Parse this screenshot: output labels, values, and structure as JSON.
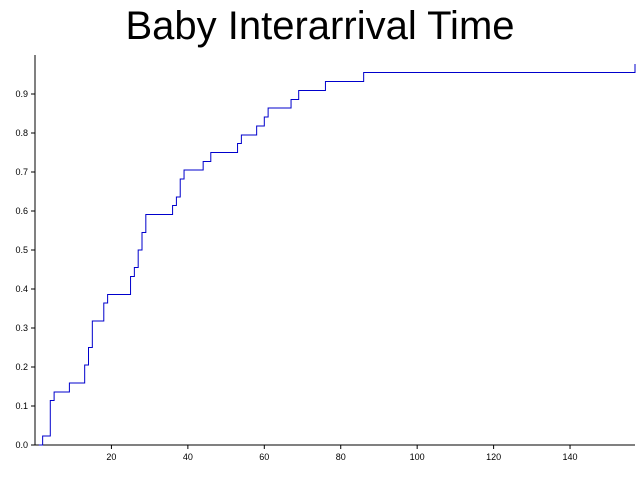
{
  "chart_data": {
    "type": "line",
    "title": "Baby Interarrival Time",
    "xlabel": "",
    "ylabel": "",
    "xlim": [
      0,
      157
    ],
    "ylim": [
      0,
      1.0
    ],
    "x_ticks": [
      20,
      40,
      60,
      80,
      100,
      120,
      140
    ],
    "y_ticks": [
      0.0,
      0.1,
      0.2,
      0.3,
      0.4,
      0.5,
      0.6,
      0.7,
      0.8,
      0.9
    ],
    "y_tick_labels": [
      "0.0",
      "0.1",
      "0.2",
      "0.3",
      "0.4",
      "0.5",
      "0.6",
      "0.7",
      "0.8",
      "0.9"
    ],
    "grid": false,
    "step": true,
    "series_color": "#0000cc",
    "series": [
      {
        "x": [
          1,
          2,
          3,
          4,
          5,
          9,
          13,
          14,
          15,
          18,
          19,
          25,
          26,
          27,
          28,
          29,
          36,
          37,
          38,
          39,
          44,
          46,
          53,
          54,
          55,
          58,
          60,
          61,
          67,
          69,
          76,
          86,
          157
        ],
        "y": [
          0.0,
          0.023,
          0.023,
          0.114,
          0.136,
          0.159,
          0.205,
          0.25,
          0.318,
          0.364,
          0.386,
          0.432,
          0.455,
          0.5,
          0.545,
          0.591,
          0.614,
          0.636,
          0.682,
          0.705,
          0.727,
          0.75,
          0.773,
          0.795,
          0.795,
          0.818,
          0.841,
          0.864,
          0.886,
          0.909,
          0.932,
          0.955,
          0.977
        ]
      }
    ]
  }
}
